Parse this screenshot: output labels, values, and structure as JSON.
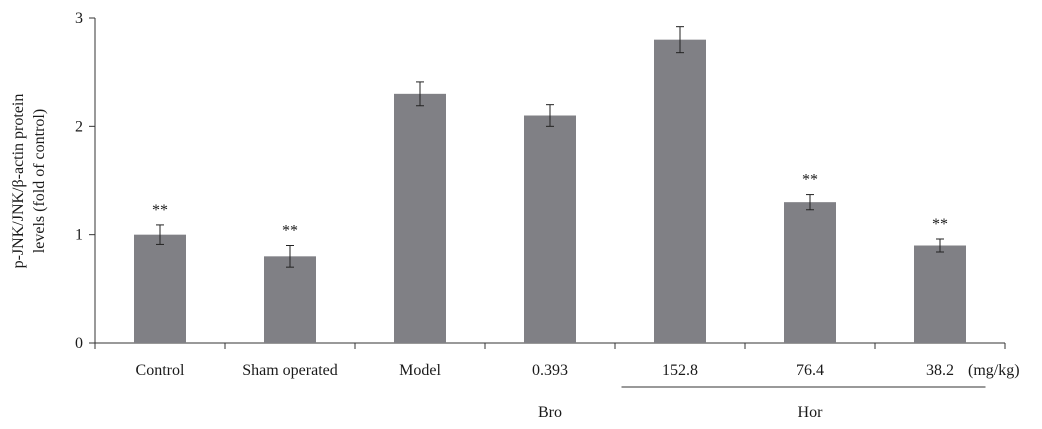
{
  "chart_data": {
    "type": "bar",
    "categories": [
      "Control",
      "Sham operated",
      "Model",
      "0.393",
      "152.8",
      "76.4",
      "38.2"
    ],
    "values": [
      1.0,
      0.8,
      2.3,
      2.1,
      2.8,
      1.3,
      0.9
    ],
    "errors": [
      0.09,
      0.1,
      0.11,
      0.1,
      0.12,
      0.07,
      0.06
    ],
    "significance": [
      "**",
      "**",
      "",
      "",
      "",
      "**",
      "**"
    ],
    "ylabel_line1": "p-JNK/JNK/β-actin protein",
    "ylabel_line2": "levels (fold of control)",
    "yticks": [
      "0",
      "1",
      "2",
      "3"
    ],
    "ylim": [
      0,
      3
    ],
    "unit_label": "(mg/kg)",
    "groups": [
      {
        "label": "Bro",
        "from": 3,
        "to": 3,
        "underline": false
      },
      {
        "label": "Hor",
        "from": 4,
        "to": 6,
        "underline": true
      }
    ],
    "bar_color": "#808085",
    "grid": false
  }
}
